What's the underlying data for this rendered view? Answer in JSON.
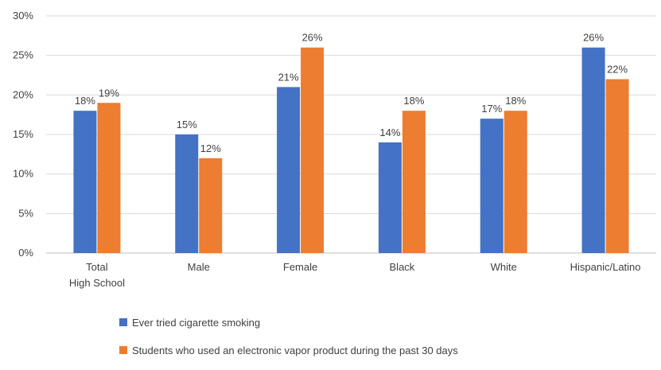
{
  "chart_data": {
    "type": "bar",
    "categories": [
      "Total  High School",
      "Male",
      "Female",
      "Black",
      "White",
      "Hispanic/Latino"
    ],
    "series": [
      {
        "name": "Ever tried cigarette smoking",
        "values": [
          18,
          15,
          21,
          14,
          17,
          26
        ],
        "color": "#4472C4"
      },
      {
        "name": "Students who used an electronic vapor product during the past 30 days",
        "values": [
          19,
          12,
          26,
          18,
          18,
          22
        ],
        "color": "#ED7D31"
      }
    ],
    "y_ticks": [
      "0%",
      "5%",
      "10%",
      "15%",
      "20%",
      "25%",
      "30%"
    ],
    "ylim": [
      0,
      30
    ],
    "value_suffix": "%",
    "grid": true,
    "legend_position": "bottom-left",
    "title": "",
    "xlabel": "",
    "ylabel": ""
  }
}
